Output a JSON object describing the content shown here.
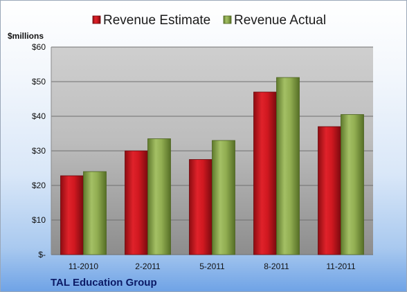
{
  "chart_data": {
    "type": "bar",
    "title": "",
    "ylabel": "$millions",
    "xlabel": "",
    "footer": "TAL Education Group",
    "categories": [
      "11-2010",
      "2-2011",
      "5-2011",
      "8-2011",
      "11-2011"
    ],
    "series": [
      {
        "name": "Revenue Estimate",
        "color": "#c8141e",
        "values": [
          22.8,
          30.0,
          27.5,
          47.0,
          37.0
        ]
      },
      {
        "name": "Revenue Actual",
        "color": "#8aa64a",
        "values": [
          24.0,
          33.5,
          33.0,
          51.2,
          40.5
        ]
      }
    ],
    "ylim": [
      0,
      60
    ],
    "yticks": [
      0,
      10,
      20,
      30,
      40,
      50,
      60
    ],
    "ytick_labels": [
      "$-",
      "$10",
      "$20",
      "$30",
      "$40",
      "$50",
      "$60"
    ],
    "grid": true,
    "legend_position": "top"
  }
}
